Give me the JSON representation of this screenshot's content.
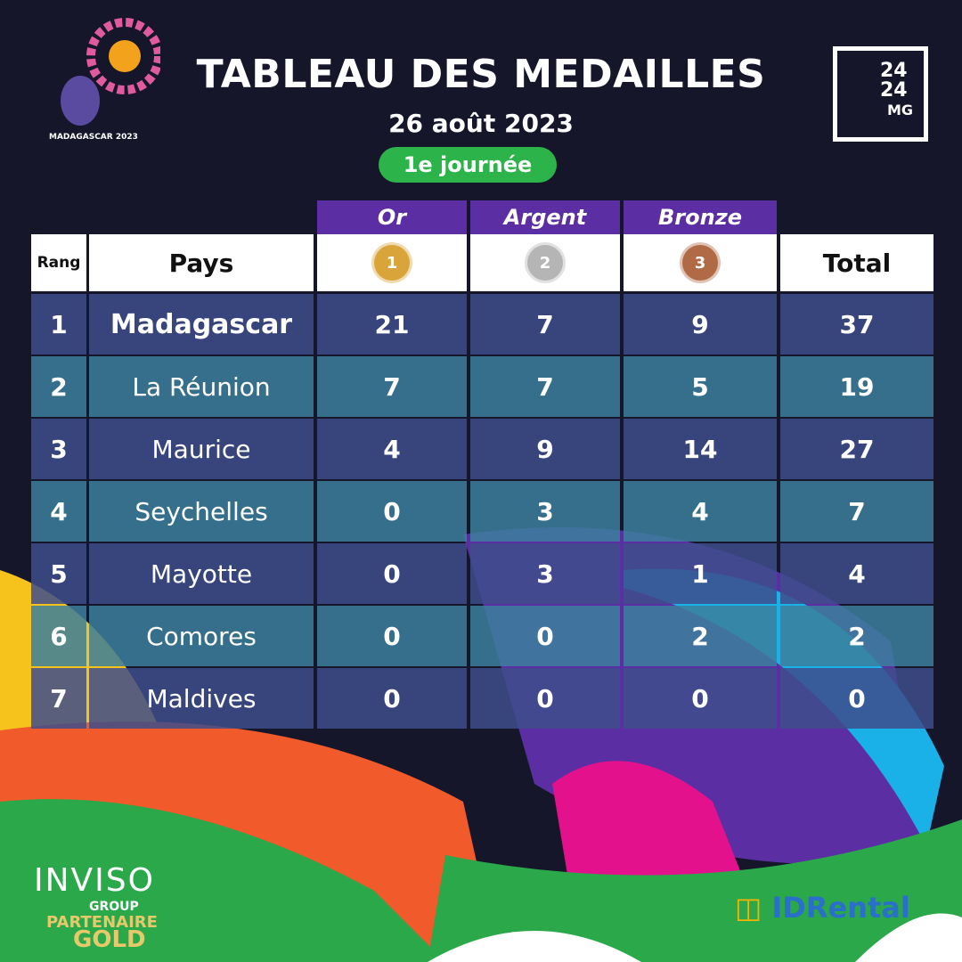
{
  "header": {
    "title": "TABLEAU DES MEDAILLES",
    "date": "26 août 2023",
    "day": "1e journée"
  },
  "logos": {
    "event": "11e JIOI JEUX DES ÎLES DE L'OCÉAN INDIEN MADAGASCAR 2023",
    "media_top": "24",
    "media_mid": "24",
    "media_bottom": "MG"
  },
  "table": {
    "medal_columns": [
      "Or",
      "Argent",
      "Bronze"
    ],
    "headers": {
      "rank": "Rang",
      "country": "Pays",
      "total": "Total"
    },
    "medal_icons": [
      {
        "name": "gold-medal-icon",
        "num": "1",
        "color": "#d9a43a"
      },
      {
        "name": "silver-medal-icon",
        "num": "2",
        "color": "#b5b5b5"
      },
      {
        "name": "bronze-medal-icon",
        "num": "3",
        "color": "#b06a45"
      }
    ],
    "rows": [
      {
        "rank": "1",
        "country": "Madagascar",
        "gold": "21",
        "silver": "7",
        "bronze": "9",
        "total": "37"
      },
      {
        "rank": "2",
        "country": "La Réunion",
        "gold": "7",
        "silver": "7",
        "bronze": "5",
        "total": "19"
      },
      {
        "rank": "3",
        "country": "Maurice",
        "gold": "4",
        "silver": "9",
        "bronze": "14",
        "total": "27"
      },
      {
        "rank": "4",
        "country": "Seychelles",
        "gold": "0",
        "silver": "3",
        "bronze": "4",
        "total": "7"
      },
      {
        "rank": "5",
        "country": "Mayotte",
        "gold": "0",
        "silver": "3",
        "bronze": "1",
        "total": "4"
      },
      {
        "rank": "6",
        "country": "Comores",
        "gold": "0",
        "silver": "0",
        "bronze": "2",
        "total": "2"
      },
      {
        "rank": "7",
        "country": "Maldives",
        "gold": "0",
        "silver": "0",
        "bronze": "0",
        "total": "0"
      }
    ]
  },
  "sponsors": {
    "inviso": "INVISO",
    "group": "GROUP",
    "partner": "PARTENAIRE",
    "gold": "GOLD",
    "idrental": "IDRental"
  },
  "colors": {
    "purple": "#5b2fa3",
    "green": "#2cb34a",
    "row_dark": "#3e4d8c",
    "row_teal": "#3c7f9c"
  }
}
